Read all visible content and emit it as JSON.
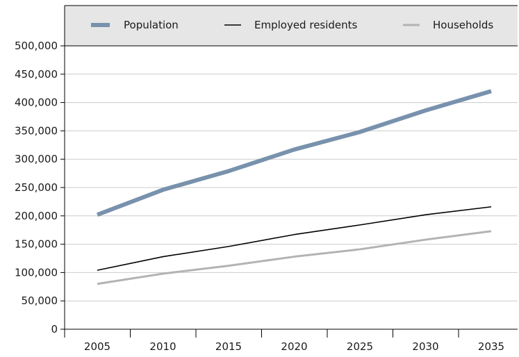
{
  "chart_data": {
    "type": "line",
    "title": "",
    "xlabel": "",
    "ylabel": "",
    "x": [
      "2005",
      "2010",
      "2015",
      "2020",
      "2025",
      "2030",
      "2035"
    ],
    "ylim": [
      0,
      500000
    ],
    "yticks": [
      {
        "value": 0,
        "label": "0"
      },
      {
        "value": 50000,
        "label": "50,000"
      },
      {
        "value": 100000,
        "label": "100,000"
      },
      {
        "value": 150000,
        "label": "150,000"
      },
      {
        "value": 200000,
        "label": "200,000"
      },
      {
        "value": 250000,
        "label": "250,000"
      },
      {
        "value": 300000,
        "label": "300,000"
      },
      {
        "value": 350000,
        "label": "350,000"
      },
      {
        "value": 400000,
        "label": "400,000"
      },
      {
        "value": 450000,
        "label": "450,000"
      },
      {
        "value": 500000,
        "label": "500,000"
      }
    ],
    "grid": "horizontal",
    "legend_position": "top",
    "series": [
      {
        "key": "population",
        "name": "Population",
        "color": "#7892ad",
        "values": [
          202000,
          246000,
          279000,
          317000,
          348000,
          386000,
          420000
        ]
      },
      {
        "key": "employed",
        "name": "Employed residents",
        "color": "#000000",
        "values": [
          104000,
          128000,
          146000,
          167000,
          184000,
          202000,
          216000
        ]
      },
      {
        "key": "households",
        "name": "Households",
        "color": "#b3b3b3",
        "values": [
          80000,
          98000,
          112000,
          128000,
          141000,
          158000,
          173000
        ]
      }
    ]
  }
}
